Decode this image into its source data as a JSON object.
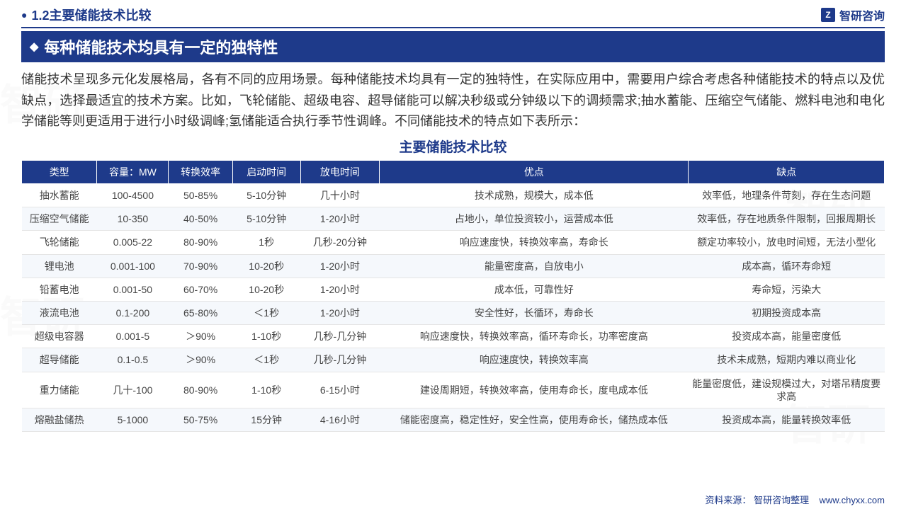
{
  "header": {
    "section_title": "1.2主要储能技术比较",
    "logo_text": "智研咨询",
    "logo_icon": "Z"
  },
  "subtitle": "每种储能技术均具有一定的独特性",
  "body_text": "储能技术呈现多元化发展格局，各有不同的应用场景。每种储能技术均具有一定的独特性，在实际应用中，需要用户综合考虑各种储能技术的特点以及优缺点，选择最适宜的技术方案。比如，飞轮储能、超级电容、超导储能可以解决秒级或分钟级以下的调频需求;抽水蓄能、压缩空气储能、燃料电池和电化学储能等则更适用于进行小时级调峰;氢储能适合执行季节性调峰。不同储能技术的特点如下表所示：",
  "table": {
    "title": "主要储能技术比较",
    "columns": [
      "类型",
      "容量：MW",
      "转换效率",
      "启动时间",
      "放电时间",
      "优点",
      "缺点"
    ],
    "column_widths": [
      "100px",
      "95px",
      "85px",
      "90px",
      "105px",
      "410px",
      "260px"
    ],
    "header_bg": "#1e3a8a",
    "header_color": "#ffffff",
    "row_alt_bg": "#f5f8fc",
    "border_color": "#e5e5e5",
    "rows": [
      {
        "type": "抽水蓄能",
        "capacity": "100-4500",
        "efficiency": "50-85%",
        "startup": "5-10分钟",
        "discharge": "几十小时",
        "pros": "技术成熟，规模大，成本低",
        "cons": "效率低，地理条件苛刻，存在生态问题"
      },
      {
        "type": "压缩空气储能",
        "capacity": "10-350",
        "efficiency": "40-50%",
        "startup": "5-10分钟",
        "discharge": "1-20小时",
        "pros": "占地小，单位投资较小，运营成本低",
        "cons": "效率低，存在地质条件限制，回报周期长"
      },
      {
        "type": "飞轮储能",
        "capacity": "0.005-22",
        "efficiency": "80-90%",
        "startup": "1秒",
        "discharge": "几秒-20分钟",
        "pros": "响应速度快，转换效率高，寿命长",
        "cons": "额定功率较小，放电时间短，无法小型化"
      },
      {
        "type": "锂电池",
        "capacity": "0.001-100",
        "efficiency": "70-90%",
        "startup": "10-20秒",
        "discharge": "1-20小时",
        "pros": "能量密度高，自放电小",
        "cons": "成本高，循环寿命短"
      },
      {
        "type": "铅蓄电池",
        "capacity": "0.001-50",
        "efficiency": "60-70%",
        "startup": "10-20秒",
        "discharge": "1-20小时",
        "pros": "成本低，可靠性好",
        "cons": "寿命短，污染大"
      },
      {
        "type": "液流电池",
        "capacity": "0.1-200",
        "efficiency": "65-80%",
        "startup": "＜1秒",
        "discharge": "1-20小时",
        "pros": "安全性好，长循环，寿命长",
        "cons": "初期投资成本高"
      },
      {
        "type": "超级电容器",
        "capacity": "0.001-5",
        "efficiency": "＞90%",
        "startup": "1-10秒",
        "discharge": "几秒-几分钟",
        "pros": "响应速度快，转换效率高，循环寿命长，功率密度高",
        "cons": "投资成本高，能量密度低"
      },
      {
        "type": "超导储能",
        "capacity": "0.1-0.5",
        "efficiency": "＞90%",
        "startup": "＜1秒",
        "discharge": "几秒-几分钟",
        "pros": "响应速度快，转换效率高",
        "cons": "技术未成熟，短期内难以商业化"
      },
      {
        "type": "重力储能",
        "capacity": "几十-100",
        "efficiency": "80-90%",
        "startup": "1-10秒",
        "discharge": "6-15小时",
        "pros": "建设周期短，转换效率高，使用寿命长，度电成本低",
        "cons": "能量密度低，建设规模过大，对塔吊精度要求高"
      },
      {
        "type": "熔融盐储热",
        "capacity": "5-1000",
        "efficiency": "50-75%",
        "startup": "15分钟",
        "discharge": "4-16小时",
        "pros": "储能密度高，稳定性好，安全性高，使用寿命长，储热成本低",
        "cons": "投资成本高，能量转换效率低"
      }
    ]
  },
  "footer": {
    "source_label": "资料来源：",
    "source_text": "智研咨询整理",
    "url": "www.chyxx.com"
  },
  "colors": {
    "primary": "#1e3a8a",
    "text": "#333333",
    "background": "#ffffff"
  }
}
